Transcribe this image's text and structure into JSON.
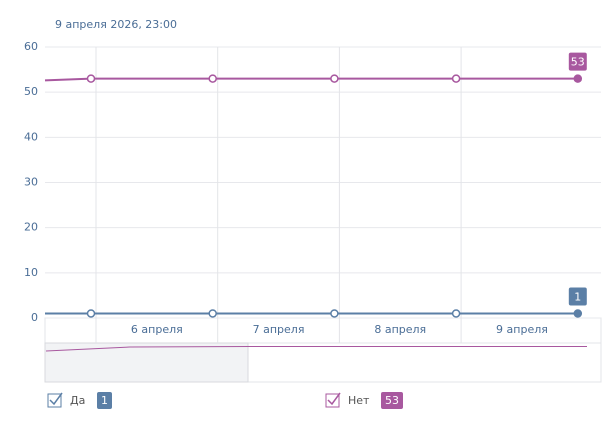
{
  "chart_data": {
    "type": "line",
    "title": "9 апреля 2026, 23:00",
    "x_labels": [
      "6 апреля",
      "7 апреля",
      "8 апреля",
      "9 апреля"
    ],
    "ylim": [
      0,
      60
    ],
    "yticks": [
      0,
      10,
      20,
      30,
      40,
      50,
      60
    ],
    "grid": true,
    "series": [
      {
        "name": "Да",
        "color": "#5b7fa6",
        "values": [
          1,
          1,
          1,
          1,
          1,
          1
        ]
      },
      {
        "name": "Нет",
        "color": "#a8589f",
        "values": [
          52.6,
          53,
          53,
          53,
          53,
          53
        ]
      }
    ]
  }
}
